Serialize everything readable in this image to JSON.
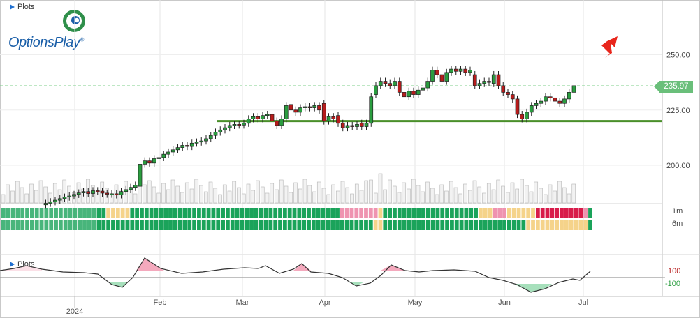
{
  "header": {
    "plots_label": "Plots"
  },
  "logo": {
    "text": "OptionsPlay",
    "registered": "®"
  },
  "indicator": {
    "plots_label": "Plots",
    "levels": [
      "100",
      "-100"
    ]
  },
  "rows": {
    "labels": [
      "1m",
      "6m"
    ]
  },
  "price_tag": "235.97",
  "colors": {
    "up": "#2a9d3f",
    "down": "#b71c1c",
    "support": "#4a8f2a",
    "signal_green": "#1aa35a",
    "signal_yellow": "#f5d38a",
    "signal_pink": "#ef93b0",
    "signal_red": "#d81b4a",
    "arrow": "#e8261c"
  },
  "chart_data": {
    "type": "candlestick",
    "x_labels": [
      "2024",
      "Feb",
      "Mar",
      "Apr",
      "May",
      "Jun",
      "Jul"
    ],
    "y_ticks": [
      "200.00",
      "225.00",
      "250.00"
    ],
    "ylim": [
      185,
      270
    ],
    "last_price": 235.97,
    "support_level": 220,
    "candles": [
      {
        "o": 182.1,
        "c": 182.8
      },
      {
        "o": 182.8,
        "c": 183.5
      },
      {
        "o": 183.5,
        "c": 184.2
      },
      {
        "o": 184.2,
        "c": 184.9
      },
      {
        "o": 184.9,
        "c": 185.6
      },
      {
        "o": 185.6,
        "c": 186.1
      },
      {
        "o": 186.1,
        "c": 186.8
      },
      {
        "o": 186.8,
        "c": 187.5
      },
      {
        "o": 187.5,
        "c": 188.1
      },
      {
        "o": 188.1,
        "c": 187.2
      },
      {
        "o": 187.2,
        "c": 188.5
      },
      {
        "o": 188.5,
        "c": 188.3
      },
      {
        "o": 188.3,
        "c": 187.4
      },
      {
        "o": 187.4,
        "c": 186.9
      },
      {
        "o": 186.9,
        "c": 187.1
      },
      {
        "o": 187.1,
        "c": 186.6
      },
      {
        "o": 186.6,
        "c": 188.1
      },
      {
        "o": 188.1,
        "c": 189.0
      },
      {
        "o": 189.0,
        "c": 190.0
      },
      {
        "o": 190.0,
        "c": 191.0
      },
      {
        "o": 190.5,
        "c": 200.5
      },
      {
        "o": 200.5,
        "c": 202.0
      },
      {
        "o": 202.0,
        "c": 201.0
      },
      {
        "o": 201.0,
        "c": 203.0
      },
      {
        "o": 203.0,
        "c": 203.5
      },
      {
        "o": 203.5,
        "c": 205.0
      },
      {
        "o": 205.0,
        "c": 206.0
      },
      {
        "o": 206.0,
        "c": 207.0
      },
      {
        "o": 207.0,
        "c": 208.0
      },
      {
        "o": 208.0,
        "c": 209.0
      },
      {
        "o": 209.0,
        "c": 208.5
      },
      {
        "o": 208.5,
        "c": 210.0
      },
      {
        "o": 210.0,
        "c": 210.5
      },
      {
        "o": 210.5,
        "c": 211.0
      },
      {
        "o": 211.0,
        "c": 212.0
      },
      {
        "o": 212.0,
        "c": 213.5
      },
      {
        "o": 213.5,
        "c": 215.0
      },
      {
        "o": 215.0,
        "c": 216.0
      },
      {
        "o": 216.0,
        "c": 217.0
      },
      {
        "o": 217.0,
        "c": 218.0
      },
      {
        "o": 218.0,
        "c": 218.5
      },
      {
        "o": 218.5,
        "c": 218.2
      },
      {
        "o": 218.2,
        "c": 219.0
      },
      {
        "o": 219.0,
        "c": 221.0
      },
      {
        "o": 221.0,
        "c": 222.0
      },
      {
        "o": 222.0,
        "c": 221.0
      },
      {
        "o": 221.0,
        "c": 222.5
      },
      {
        "o": 222.5,
        "c": 223.0
      },
      {
        "o": 223.0,
        "c": 220.0
      },
      {
        "o": 220.0,
        "c": 218.0
      },
      {
        "o": 218.0,
        "c": 221.0
      },
      {
        "o": 221.0,
        "c": 227.0
      },
      {
        "o": 227.5,
        "c": 225.0
      },
      {
        "o": 225.0,
        "c": 224.0
      },
      {
        "o": 224.0,
        "c": 226.0
      },
      {
        "o": 226.0,
        "c": 226.5
      },
      {
        "o": 226.5,
        "c": 226.0
      },
      {
        "o": 226.0,
        "c": 227.0
      },
      {
        "o": 227.0,
        "c": 225.0
      },
      {
        "o": 228.0,
        "c": 220.0
      },
      {
        "o": 220.0,
        "c": 222.0
      },
      {
        "o": 222.0,
        "c": 221.0
      },
      {
        "o": 222.5,
        "c": 219.0
      },
      {
        "o": 219.0,
        "c": 217.0
      },
      {
        "o": 217.0,
        "c": 218.0
      },
      {
        "o": 218.0,
        "c": 217.5
      },
      {
        "o": 217.5,
        "c": 218.5
      },
      {
        "o": 219.0,
        "c": 217.5
      },
      {
        "o": 217.5,
        "c": 219.0
      },
      {
        "o": 219.0,
        "c": 231.0
      },
      {
        "o": 232.0,
        "c": 236.0
      },
      {
        "o": 236.0,
        "c": 238.0
      },
      {
        "o": 238.0,
        "c": 237.0
      },
      {
        "o": 237.0,
        "c": 236.0
      },
      {
        "o": 236.0,
        "c": 238.0
      },
      {
        "o": 238.0,
        "c": 233.0
      },
      {
        "o": 233.0,
        "c": 231.0
      },
      {
        "o": 231.0,
        "c": 233.5
      },
      {
        "o": 233.5,
        "c": 232.0
      },
      {
        "o": 232.0,
        "c": 234.0
      },
      {
        "o": 234.0,
        "c": 235.0
      },
      {
        "o": 235.0,
        "c": 238.0
      },
      {
        "o": 238.0,
        "c": 243.0
      },
      {
        "o": 243.0,
        "c": 241.0
      },
      {
        "o": 241.0,
        "c": 238.0
      },
      {
        "o": 238.0,
        "c": 242.0
      },
      {
        "o": 242.0,
        "c": 243.5
      },
      {
        "o": 243.5,
        "c": 242.5
      },
      {
        "o": 242.5,
        "c": 243.5
      },
      {
        "o": 243.5,
        "c": 242.0
      },
      {
        "o": 242.0,
        "c": 243.0
      },
      {
        "o": 241.0,
        "c": 236.0
      },
      {
        "o": 236.0,
        "c": 237.0
      },
      {
        "o": 237.0,
        "c": 238.0
      },
      {
        "o": 238.0,
        "c": 237.5
      },
      {
        "o": 237.0,
        "c": 241.0
      },
      {
        "o": 241.0,
        "c": 236.0
      },
      {
        "o": 236.0,
        "c": 233.0
      },
      {
        "o": 233.0,
        "c": 232.0
      },
      {
        "o": 232.0,
        "c": 230.0
      },
      {
        "o": 230.0,
        "c": 223.0
      },
      {
        "o": 223.0,
        "c": 221.0
      },
      {
        "o": 221.0,
        "c": 224.0
      },
      {
        "o": 224.0,
        "c": 227.0
      },
      {
        "o": 227.0,
        "c": 228.0
      },
      {
        "o": 228.0,
        "c": 229.0
      },
      {
        "o": 229.0,
        "c": 231.0
      },
      {
        "o": 231.0,
        "c": 230.5
      },
      {
        "o": 230.5,
        "c": 229.0
      },
      {
        "o": 229.0,
        "c": 228.0
      },
      {
        "o": 228.0,
        "c": 230.0
      },
      {
        "o": 230.0,
        "c": 233.0
      },
      {
        "o": 233.0,
        "c": 236.0
      }
    ]
  }
}
